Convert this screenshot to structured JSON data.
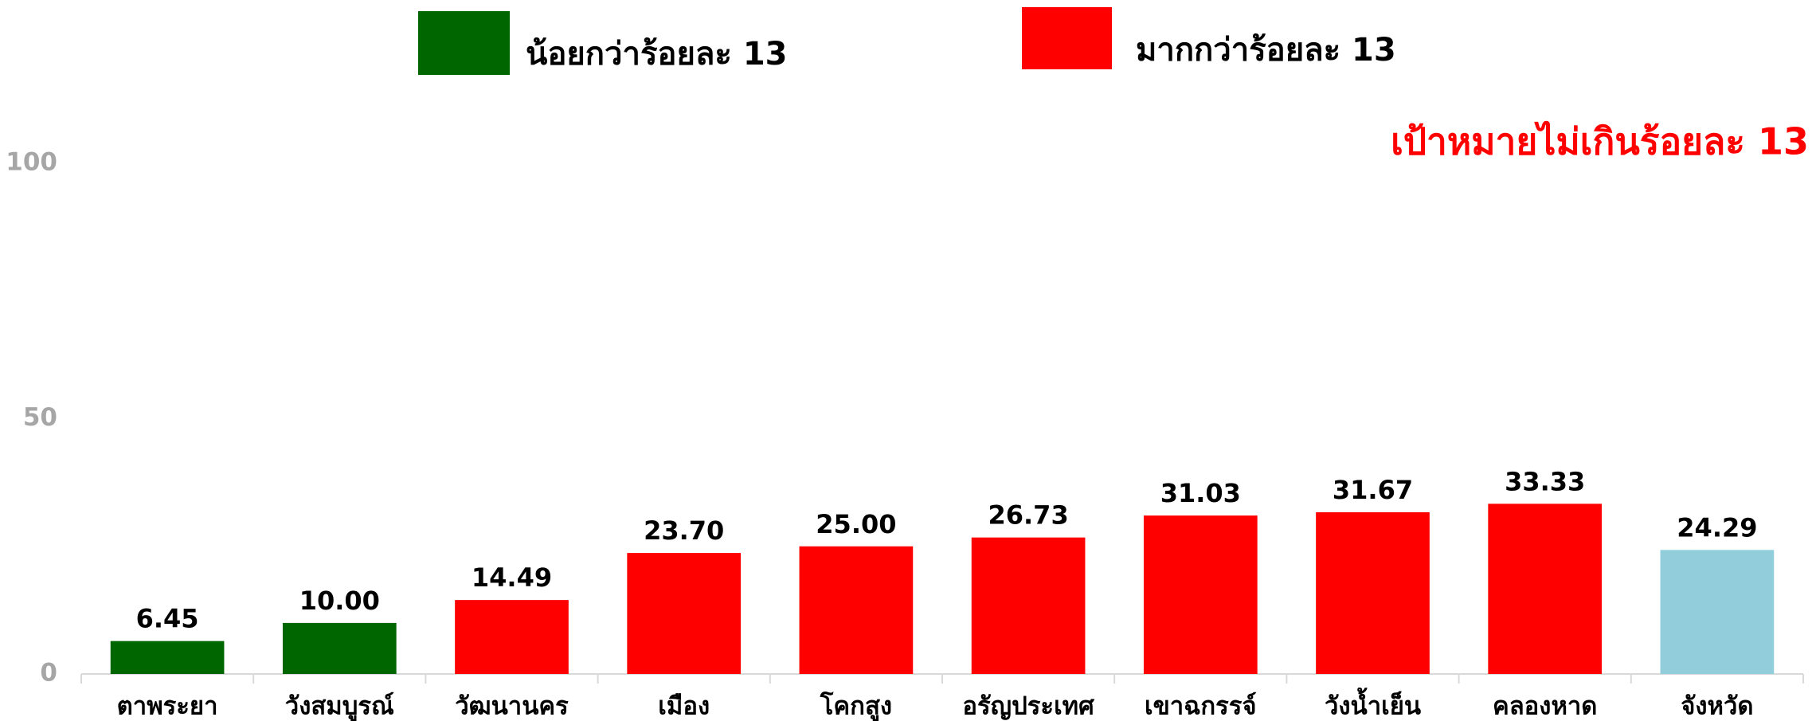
{
  "chart_data": {
    "type": "bar",
    "annotation": "เป้าหมายไม่เกินร้อยละ 13",
    "legend": [
      {
        "name": "น้อยกว่าร้อยละ 13",
        "color": "#006600"
      },
      {
        "name": "มากกว่าร้อยละ 13",
        "color": "#ff0000"
      }
    ],
    "categories": [
      "ตาพระยา",
      "วังสมบูรณ์",
      "วัฒนานคร",
      "เมือง",
      "โคกสูง",
      "อรัญประเทศ",
      "เขาฉกรรจ์",
      "วังน้ำเย็น",
      "คลองหาด",
      "จังหวัด"
    ],
    "values": [
      6.45,
      10,
      14.49,
      23.7,
      25,
      26.73,
      31.03,
      31.67,
      33.33,
      24.29
    ],
    "value_labels": [
      "6.45",
      "10.00",
      "14.49",
      "23.70",
      "25.00",
      "26.73",
      "31.03",
      "31.67",
      "33.33",
      "24.29"
    ],
    "colors": [
      "#006600",
      "#006600",
      "#ff0000",
      "#ff0000",
      "#ff0000",
      "#ff0000",
      "#ff0000",
      "#ff0000",
      "#ff0000",
      "#92cddc"
    ],
    "ylim": [
      0,
      100
    ],
    "yticks": [
      0,
      50,
      100
    ],
    "grid": false
  }
}
